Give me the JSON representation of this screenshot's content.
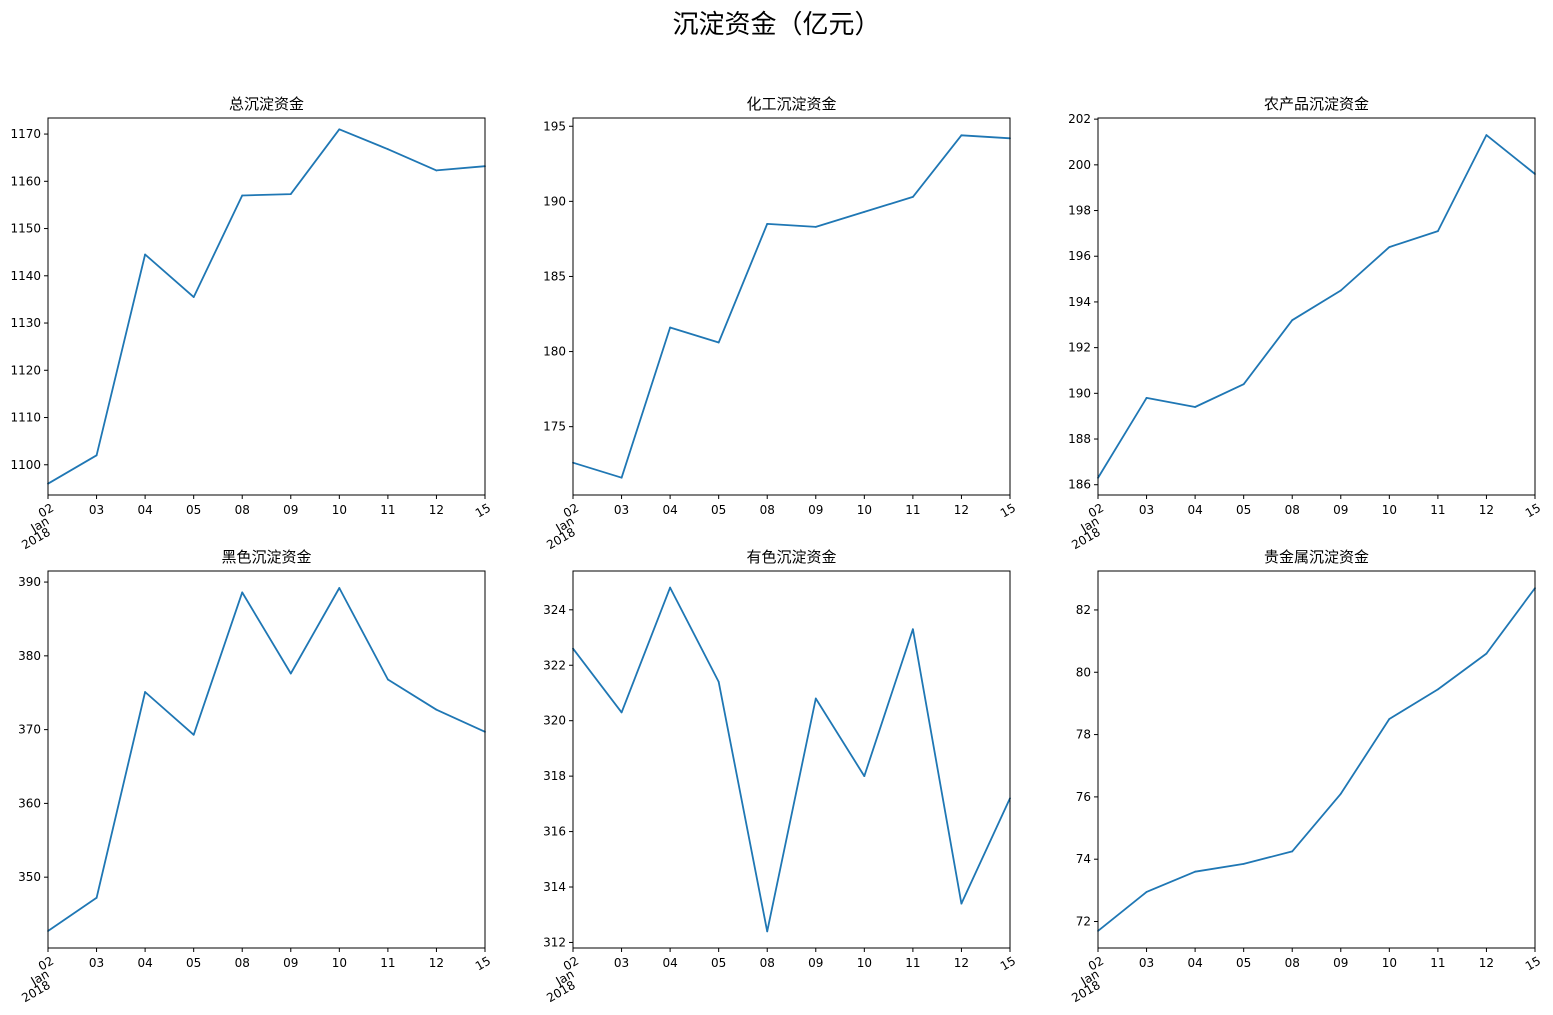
{
  "suptitle": "沉淀资金（亿元）",
  "chart_data": [
    {
      "type": "line",
      "title": "总沉淀资金",
      "xlabel": "",
      "ylabel": "",
      "x": [
        "02",
        "03",
        "04",
        "05",
        "08",
        "09",
        "10",
        "11",
        "12",
        "15"
      ],
      "x_extra_labels": [
        "Jan",
        "2018"
      ],
      "series": [
        {
          "values": [
            1096,
            1102,
            1144.5,
            1135.5,
            1157,
            1157.3,
            1171,
            1166.8,
            1162.3,
            1163.2
          ]
        }
      ],
      "ylim": [
        1093.6,
        1173.4
      ],
      "yticks": [
        1100,
        1110,
        1120,
        1130,
        1140,
        1150,
        1160,
        1170
      ]
    },
    {
      "type": "line",
      "title": "化工沉淀资金",
      "xlabel": "",
      "ylabel": "",
      "x": [
        "02",
        "03",
        "04",
        "05",
        "08",
        "09",
        "10",
        "11",
        "12",
        "15"
      ],
      "x_extra_labels": [
        "Jan",
        "2018"
      ],
      "series": [
        {
          "values": [
            172.6,
            171.6,
            181.6,
            180.6,
            188.5,
            188.3,
            189.3,
            190.3,
            194.4,
            194.2
          ]
        }
      ],
      "ylim": [
        170.45,
        195.55
      ],
      "yticks": [
        175,
        180,
        185,
        190,
        195
      ]
    },
    {
      "type": "line",
      "title": "农产品沉淀资金",
      "xlabel": "",
      "ylabel": "",
      "x": [
        "02",
        "03",
        "04",
        "05",
        "08",
        "09",
        "10",
        "11",
        "12",
        "15"
      ],
      "x_extra_labels": [
        "Jan",
        "2018"
      ],
      "series": [
        {
          "values": [
            186.3,
            189.8,
            189.4,
            190.4,
            193.2,
            194.5,
            196.4,
            197.1,
            201.3,
            199.6
          ]
        }
      ],
      "ylim": [
        185.55,
        202.05
      ],
      "yticks": [
        186,
        188,
        190,
        192,
        194,
        196,
        198,
        200,
        202
      ]
    },
    {
      "type": "line",
      "title": "黑色沉淀资金",
      "xlabel": "",
      "ylabel": "",
      "x": [
        "02",
        "03",
        "04",
        "05",
        "08",
        "09",
        "10",
        "11",
        "12",
        "15"
      ],
      "x_extra_labels": [
        "Jan",
        "2018"
      ],
      "series": [
        {
          "values": [
            342.7,
            347.2,
            375.1,
            369.3,
            388.6,
            377.6,
            389.2,
            376.8,
            372.7,
            369.7
          ]
        }
      ],
      "ylim": [
        340.4,
        391.5
      ],
      "yticks": [
        350,
        360,
        370,
        380,
        390
      ]
    },
    {
      "type": "line",
      "title": "有色沉淀资金",
      "xlabel": "",
      "ylabel": "",
      "x": [
        "02",
        "03",
        "04",
        "05",
        "08",
        "09",
        "10",
        "11",
        "12",
        "15"
      ],
      "x_extra_labels": [
        "Jan",
        "2018"
      ],
      "series": [
        {
          "values": [
            322.6,
            320.3,
            324.8,
            321.4,
            312.4,
            320.8,
            318.0,
            323.3,
            313.4,
            317.2
          ]
        }
      ],
      "ylim": [
        311.8,
        325.4
      ],
      "yticks": [
        312,
        314,
        316,
        318,
        320,
        322,
        324
      ]
    },
    {
      "type": "line",
      "title": "贵金属沉淀资金",
      "xlabel": "",
      "ylabel": "",
      "x": [
        "02",
        "03",
        "04",
        "05",
        "08",
        "09",
        "10",
        "11",
        "12",
        "15"
      ],
      "x_extra_labels": [
        "Jan",
        "2018"
      ],
      "series": [
        {
          "values": [
            71.7,
            72.95,
            73.6,
            73.85,
            74.25,
            76.1,
            78.5,
            79.45,
            80.6,
            82.7
          ]
        }
      ],
      "ylim": [
        71.15,
        83.25
      ],
      "yticks": [
        72,
        74,
        76,
        78,
        80,
        82
      ]
    }
  ]
}
